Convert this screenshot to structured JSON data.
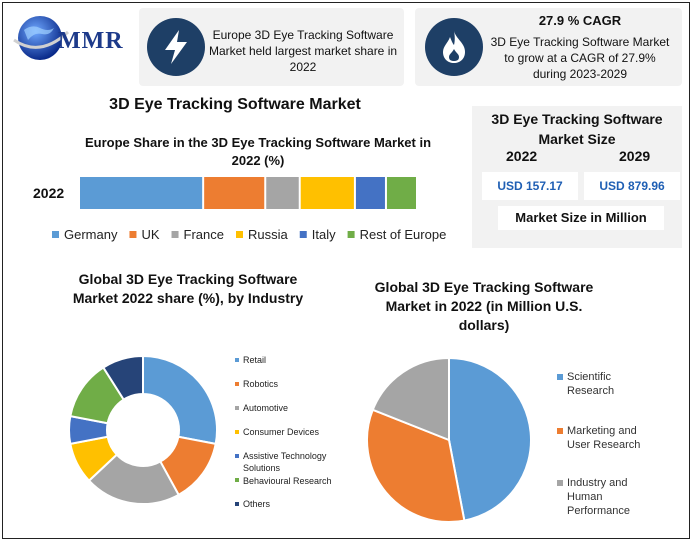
{
  "header": {
    "logo_text": "MMR",
    "card1_text": "Europe 3D Eye Tracking Software Market held largest market share in 2022",
    "card2_title": "27.9 % CAGR",
    "card2_text": "3D Eye Tracking Software Market to grow at a CAGR of 27.9% during 2023-2029"
  },
  "main_title": "3D Eye Tracking Software Market",
  "market_size": {
    "title": "3D Eye Tracking Software Market Size",
    "year1": "2022",
    "year2": "2029",
    "value1": "USD 157.17",
    "value2": "USD 879.96",
    "unit": "Market Size in Million"
  },
  "icons": [
    "lightning-icon",
    "flame-icon",
    "globe-icon"
  ],
  "chart_data": [
    {
      "type": "bar",
      "stacked": true,
      "orientation": "horizontal",
      "title": "Europe Share in the 3D Eye Tracking Software Market in 2022 (%)",
      "categories": [
        "2022"
      ],
      "series": [
        {
          "name": "Germany",
          "values": [
            36
          ],
          "color": "#5b9bd5"
        },
        {
          "name": "UK",
          "values": [
            18
          ],
          "color": "#ed7d31"
        },
        {
          "name": "France",
          "values": [
            10
          ],
          "color": "#a5a5a5"
        },
        {
          "name": "Russia",
          "values": [
            16
          ],
          "color": "#ffc000"
        },
        {
          "name": "Italy",
          "values": [
            9
          ],
          "color": "#4472c4"
        },
        {
          "name": "Rest of Europe",
          "values": [
            9
          ],
          "color": "#70ad47"
        }
      ],
      "legend": "bottom"
    },
    {
      "type": "pie",
      "donut": true,
      "title": "Global 3D Eye Tracking Software Market 2022 share (%), by Industry",
      "labels": [
        "Retail",
        "Robotics",
        "Automotive",
        "Consumer Devices",
        "Assistive Technology Solutions",
        "Behavioural Research",
        "Others"
      ],
      "values": [
        28,
        14,
        21,
        9,
        6,
        13,
        9
      ],
      "colors": [
        "#5b9bd5",
        "#ed7d31",
        "#a5a5a5",
        "#ffc000",
        "#4472c4",
        "#70ad47",
        "#264478"
      ],
      "legend": "right"
    },
    {
      "type": "pie",
      "title": "Global 3D Eye Tracking Software Market in 2022 (in Million U.S. dollars)",
      "labels": [
        "Scientific Research",
        "Marketing and User Research",
        "Industry and Human Performance"
      ],
      "values": [
        47,
        34,
        19
      ],
      "colors": [
        "#5b9bd5",
        "#ed7d31",
        "#a5a5a5"
      ],
      "legend": "right"
    }
  ]
}
